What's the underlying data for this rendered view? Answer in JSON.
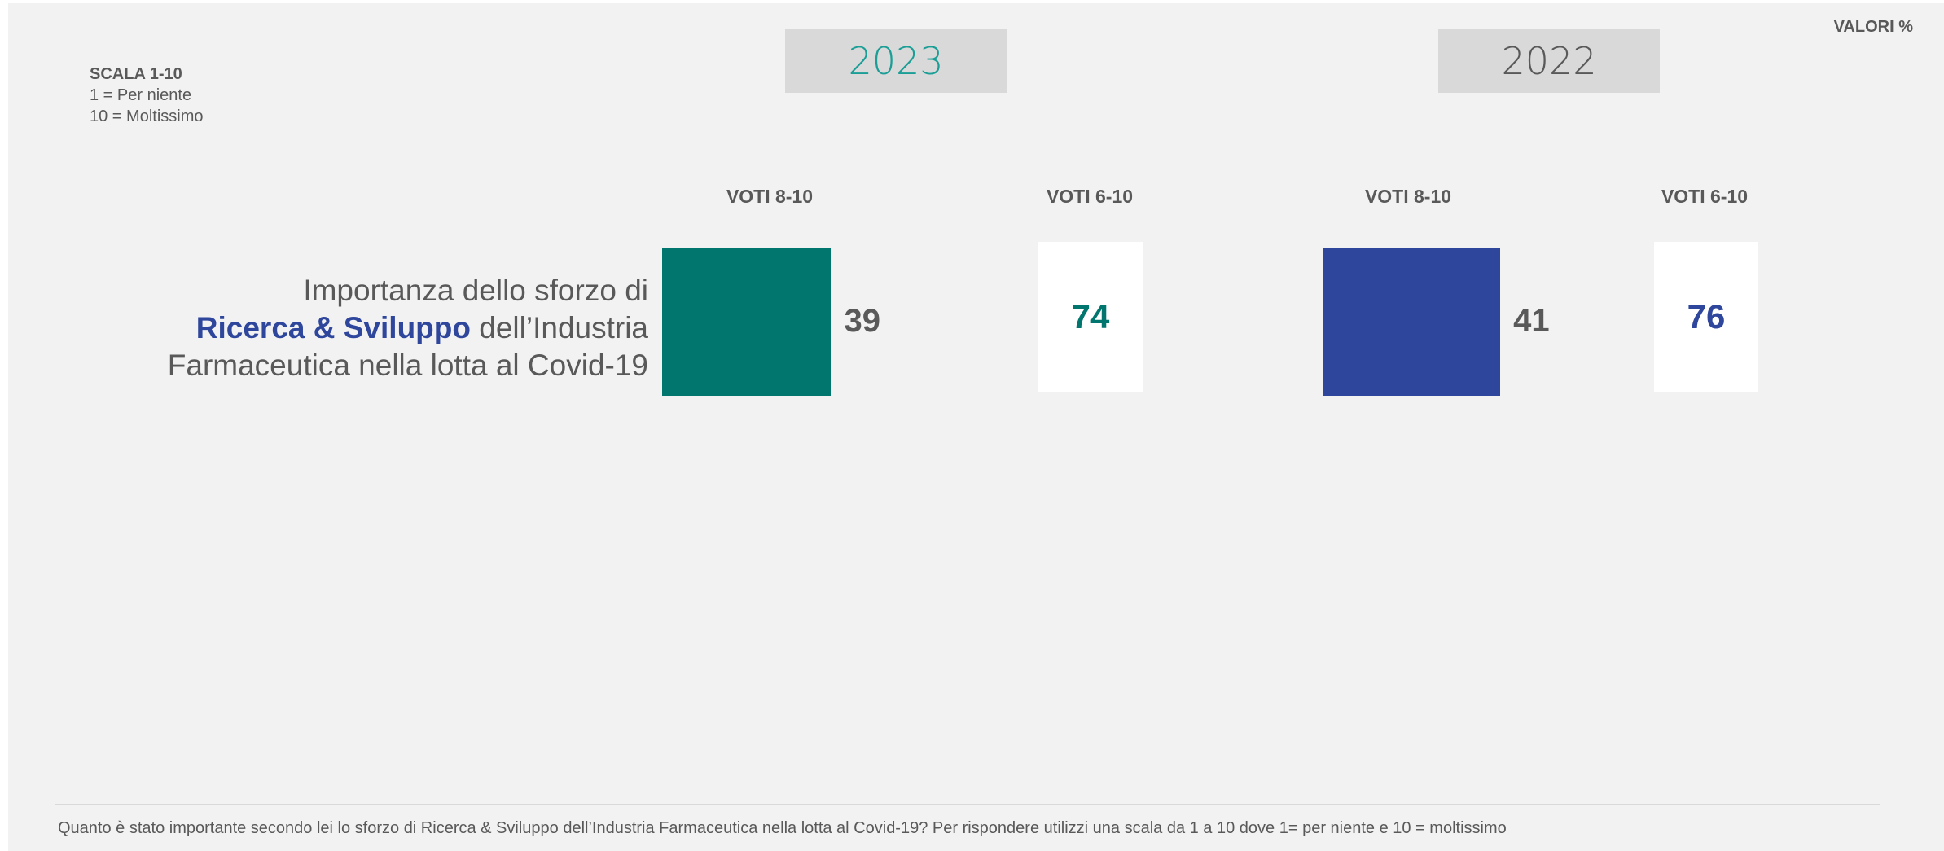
{
  "header": {
    "unit_note": "VALORI %"
  },
  "scale": {
    "title": "SCALA 1-10",
    "min_label": "1 = Per niente",
    "max_label": "10 = Moltissimo"
  },
  "question": {
    "line1": "Importanza dello sforzo di",
    "line2_highlight": "Ricerca & Sviluppo",
    "line2_rest": " dell’Industria",
    "line3": "Farmaceutica nella lotta al Covid-19"
  },
  "colors": {
    "teal": "#00766f",
    "blue": "#2e469c",
    "year2023": "#1a9e96",
    "year2022": "#595959"
  },
  "chart_data": {
    "type": "bar",
    "groups": [
      {
        "year": "2023",
        "top_label": "VOTI 8-10",
        "top_value": 39,
        "broad_label": "VOTI 6-10",
        "broad_value": 74
      },
      {
        "year": "2022",
        "top_label": "VOTI 8-10",
        "top_value": 41,
        "broad_label": "VOTI 6-10",
        "broad_value": 76
      }
    ],
    "xlim": [
      0,
      100
    ]
  },
  "footer": {
    "note": "Quanto è stato importante secondo lei lo sforzo di Ricerca & Sviluppo dell’Industria Farmaceutica nella lotta al Covid-19? Per rispondere utilizzi una scala da 1 a 10 dove 1= per niente e 10 = moltissimo"
  }
}
